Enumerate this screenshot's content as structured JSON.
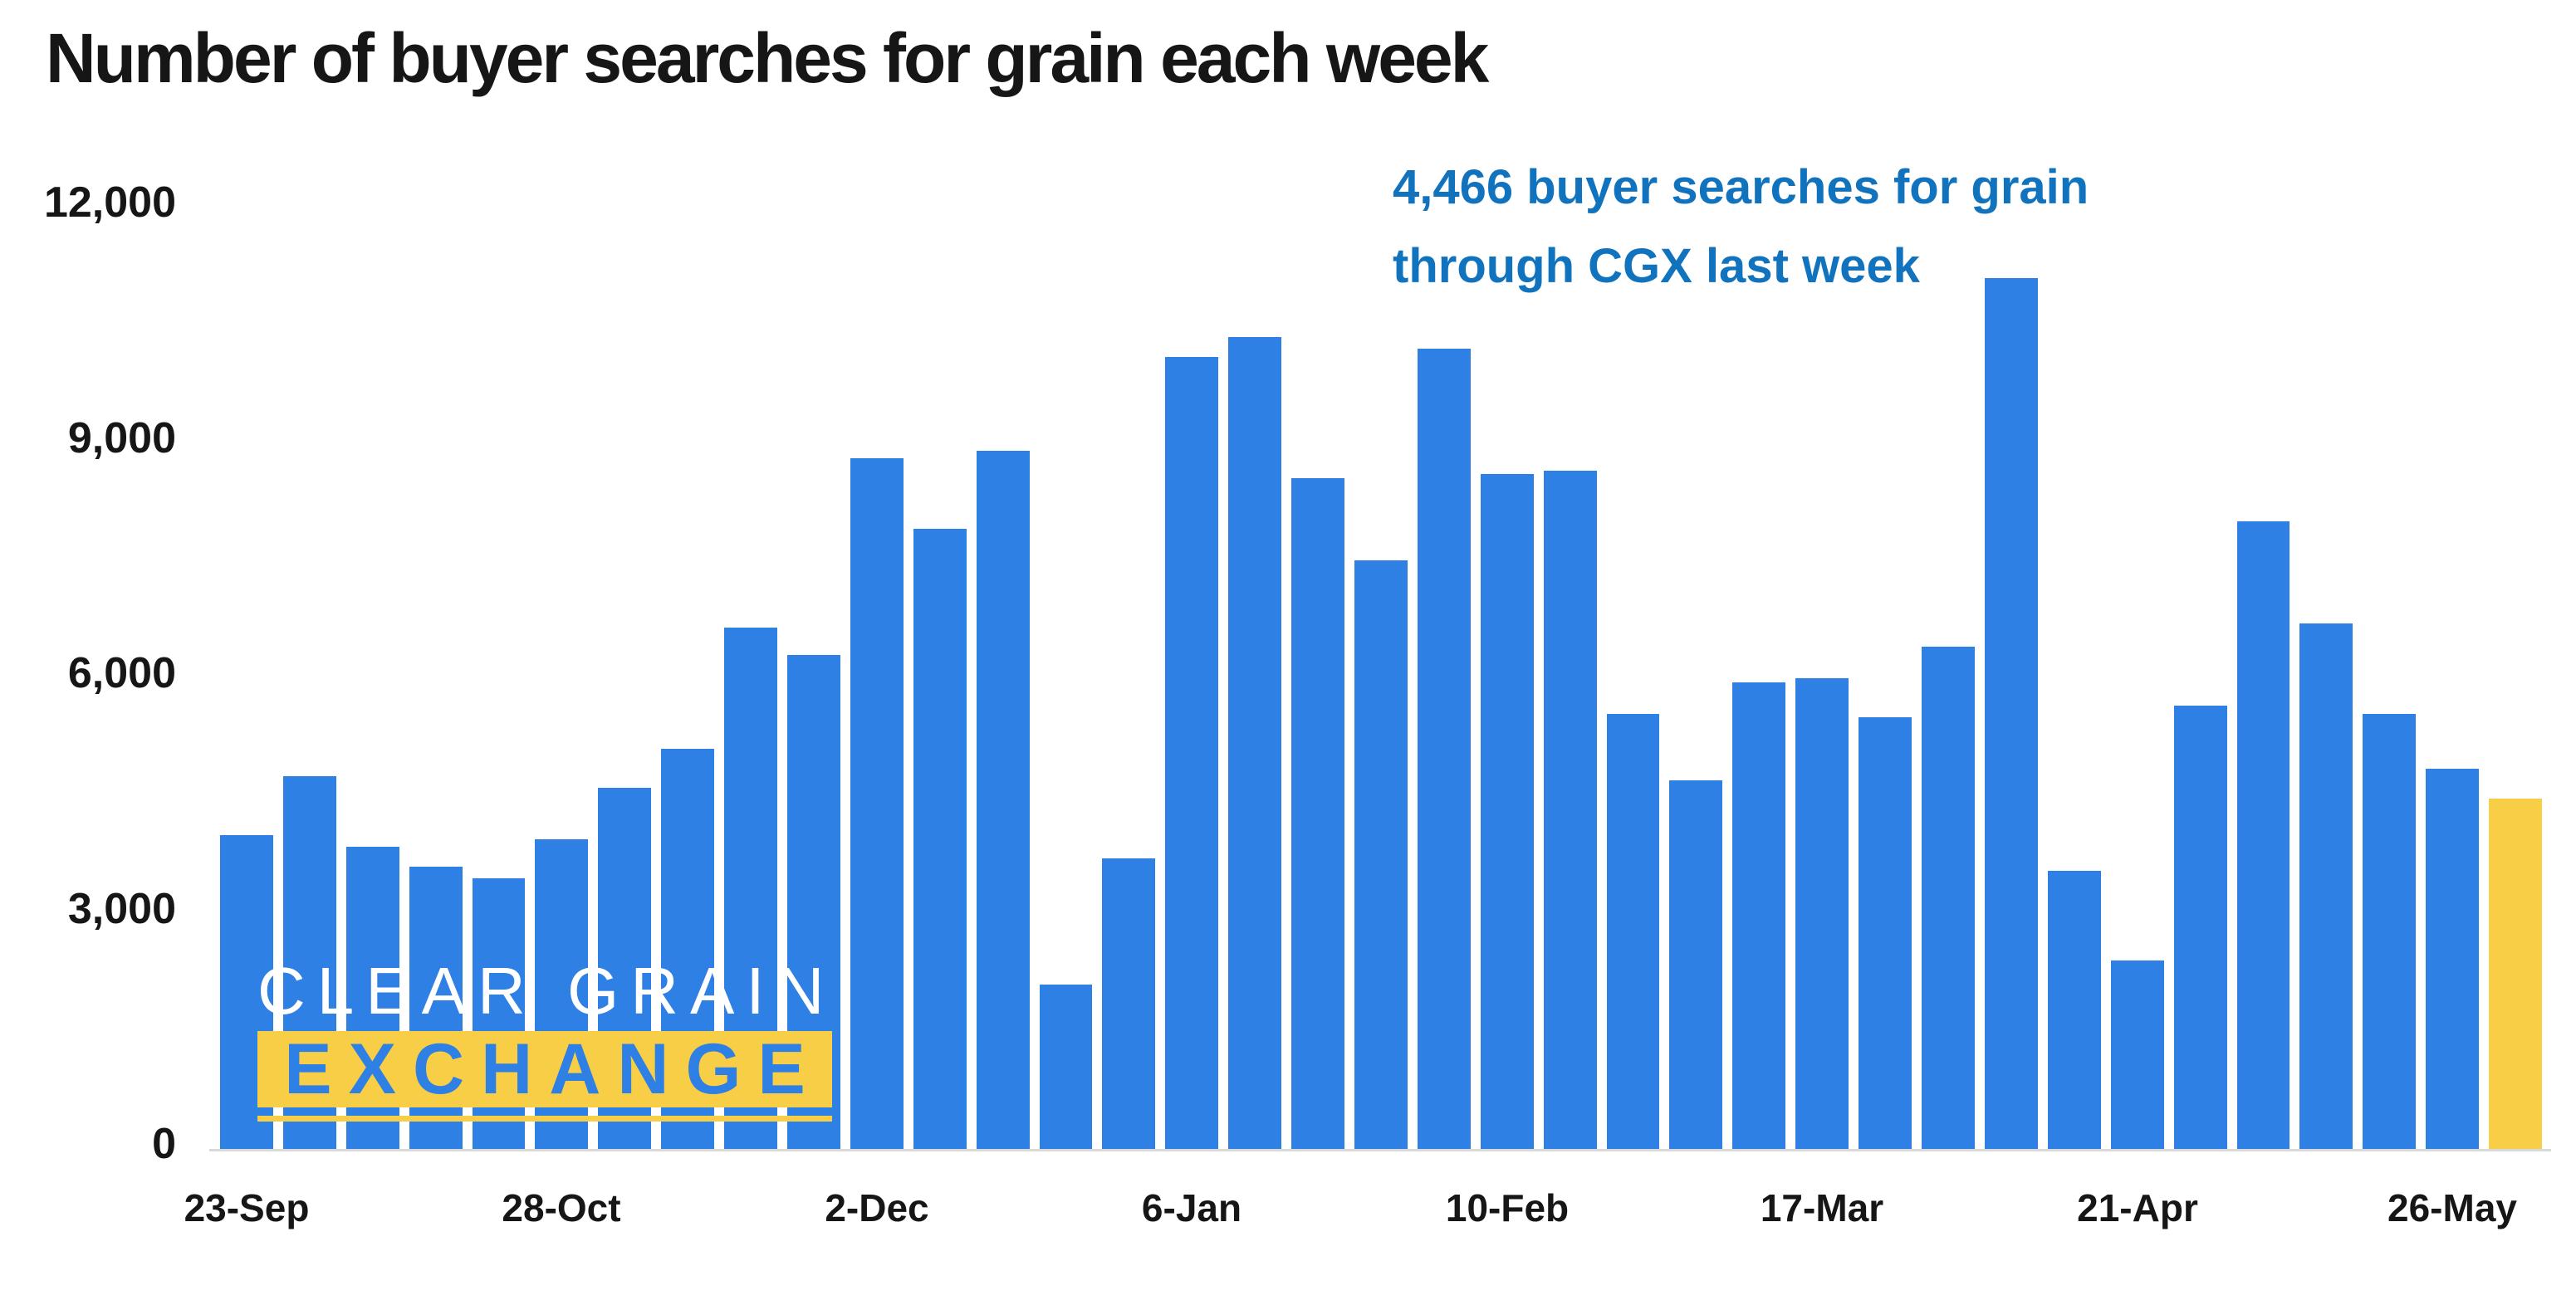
{
  "chart_data": {
    "type": "bar",
    "title": "Number of buyer searches for grain each week",
    "values": [
      4000,
      4750,
      3850,
      3600,
      3450,
      3950,
      4600,
      5100,
      6650,
      6300,
      8800,
      7900,
      8900,
      2100,
      3700,
      10100,
      10350,
      8550,
      7500,
      10200,
      8600,
      8650,
      5550,
      4700,
      5950,
      6000,
      5500,
      6400,
      11100,
      3550,
      2400,
      5650,
      8000,
      6700,
      5550,
      4850,
      4466
    ],
    "bar_count": 37,
    "x_tick_labels": [
      {
        "index": 0,
        "label": "23-Sep"
      },
      {
        "index": 5,
        "label": "28-Oct"
      },
      {
        "index": 10,
        "label": "2-Dec"
      },
      {
        "index": 15,
        "label": "6-Jan"
      },
      {
        "index": 20,
        "label": "10-Feb"
      },
      {
        "index": 25,
        "label": "17-Mar"
      },
      {
        "index": 30,
        "label": "21-Apr"
      },
      {
        "index": 35,
        "label": "26-May"
      }
    ],
    "y_ticks": [
      {
        "value": 0,
        "label": "0"
      },
      {
        "value": 3000,
        "label": "3,000"
      },
      {
        "value": 6000,
        "label": "6,000"
      },
      {
        "value": 9000,
        "label": "9,000"
      },
      {
        "value": 12000,
        "label": "12,000"
      }
    ],
    "ylim": [
      0,
      12000
    ],
    "grid": false,
    "legend": false,
    "highlight_index": 36,
    "highlight_value": 4466,
    "annotation": {
      "line1": "4,466 buyer searches for grain",
      "line2": "through CGX last week"
    },
    "colors": {
      "bar_blue": "#2F80E4",
      "bar_yellow": "#F9CE47",
      "annotation_blue": "#1173BE",
      "axis_line_gray": "#D9D9D9",
      "text_black": "#161616",
      "watermark_white": "#FFFFFF",
      "watermark_band_yellow": "#F9CE47",
      "watermark_letter_blue": "#2F80E4"
    }
  },
  "watermark": {
    "line1": "CLEAR GRAIN",
    "line2": "EXCHANGE"
  }
}
